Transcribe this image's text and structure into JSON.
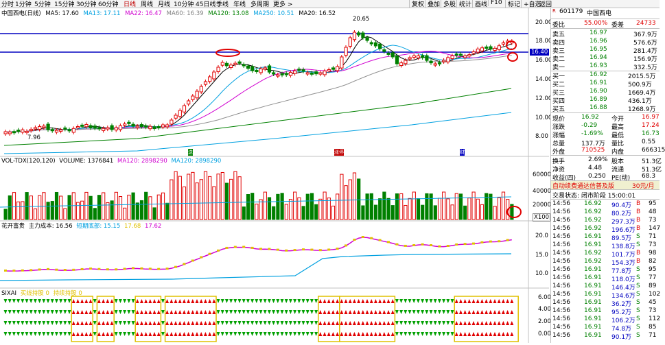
{
  "toolbar": {
    "periods": [
      "分时",
      "1分钟",
      "5分钟",
      "15分钟",
      "30分钟",
      "60分钟",
      "日线",
      "周线",
      "月线",
      "10分钟",
      "45日线",
      "季线",
      "年线",
      "多周期",
      "更多 >"
    ],
    "active_period": "日线",
    "right_tools": [
      "复权",
      "叠加",
      "多股",
      "统计",
      "画线",
      "F10",
      "标记",
      "+自选",
      "返回"
    ]
  },
  "main_chart": {
    "title": "中国西电(日线)",
    "ma": [
      {
        "label": "MA5: 17.60",
        "color": "#000000"
      },
      {
        "label": "MA13: 17.11",
        "color": "#00a0e0"
      },
      {
        "label": "MA22: 16.47",
        "color": "#d000d0"
      },
      {
        "label": "MA60: 16.39",
        "color": "#808080"
      },
      {
        "label": "MA120: 13.08",
        "color": "#008000"
      },
      {
        "label": "MA250: 10.51",
        "color": "#00a0e0"
      },
      {
        "label": "MA20: 16.52",
        "color": "#000000"
      }
    ],
    "hline_price_label": "16.40",
    "high_label": "20.65",
    "low_label": "7.96",
    "price_axis": [
      "20.00",
      "18.00",
      "16.00",
      "14.00",
      "12.00",
      "10.00",
      "8.00"
    ],
    "markers": [
      "送",
      "涨停",
      "财"
    ]
  },
  "volume_chart": {
    "title": "VOL-TDX(120,120)",
    "volume_label": "VOLUME: 1376841",
    "ma1_label": "MA120: 2898290",
    "ma2_label": "MA120: 2898290",
    "axis": [
      "60000",
      "40000",
      "20000"
    ],
    "unit": "X100"
  },
  "indicator_chart": {
    "title": "花开富贵",
    "cost_label": "主力成本: 16.56",
    "line1_label": "短期底部: 15.15",
    "line2_label": "17.68",
    "line3_label": "17.62",
    "axis": [
      "20.0",
      "15.0",
      "10.0"
    ]
  },
  "sixai_chart": {
    "title": "SIXAI",
    "sub1": "买线持股",
    "sub2": "0",
    "sub3": "持续持股",
    "sub4": "0",
    "axis": [
      "6.00",
      "4.00",
      "2.00",
      "0.00"
    ]
  },
  "quote": {
    "code": "601179",
    "name": "中国西电",
    "weibi_label": "委比",
    "weibi_value": "55.00%",
    "weicha_label": "委差",
    "weicha_value": "24733",
    "asks": [
      {
        "label": "卖五",
        "price": "16.97",
        "vol": "367.9万"
      },
      {
        "label": "卖四",
        "price": "16.96",
        "vol": "576.6万"
      },
      {
        "label": "卖三",
        "price": "16.95",
        "vol": "281.4万"
      },
      {
        "label": "卖二",
        "price": "16.94",
        "vol": "156.9万"
      },
      {
        "label": "卖一",
        "price": "16.93",
        "vol": "332.5万"
      }
    ],
    "bids": [
      {
        "label": "买一",
        "price": "16.92",
        "vol": "2015.5万"
      },
      {
        "label": "买二",
        "price": "16.91",
        "vol": "500.9万"
      },
      {
        "label": "买三",
        "price": "16.90",
        "vol": "1669.4万"
      },
      {
        "label": "买四",
        "price": "16.89",
        "vol": "436.1万"
      },
      {
        "label": "买五",
        "price": "16.88",
        "vol": "1268.9万"
      }
    ],
    "stats": [
      {
        "l1": "现价",
        "v1": "16.92",
        "l2": "今开",
        "v2": "16.97"
      },
      {
        "l1": "涨跌",
        "v1": "-0.29",
        "l2": "最高",
        "v2": "17.24"
      },
      {
        "l1": "涨幅",
        "v1": "-1.69%",
        "l2": "最低",
        "v2": "16.73"
      },
      {
        "l1": "总量",
        "v1": "137.7万",
        "l2": "量比",
        "v2": "0.55"
      },
      {
        "l1": "外盘",
        "v1": "710525",
        "l2": "内盘",
        "v2": "666315"
      }
    ],
    "stats2": [
      {
        "l1": "换手",
        "v1": "2.69%",
        "l2": "股本",
        "v2": "51.3亿"
      },
      {
        "l1": "净资",
        "v1": "4.48",
        "l2": "流通",
        "v2": "51.3亿"
      },
      {
        "l1": "收益(四)",
        "v1": "0.250",
        "l2": "PE(动)",
        "v2": "68.3"
      }
    ],
    "promo": "自动续费通达信普及版",
    "promo_price": "30元/月",
    "status": "交易状态: 闭市阶段 15:00:01",
    "ticks": [
      {
        "time": "14:56",
        "price": "16.92",
        "vol": "90.4万",
        "bs": "B",
        "n": "95"
      },
      {
        "time": "14:56",
        "price": "16.92",
        "vol": "80.2万",
        "bs": "B",
        "n": "48"
      },
      {
        "time": "14:56",
        "price": "16.92",
        "vol": "297.3万",
        "bs": "B",
        "n": "73"
      },
      {
        "time": "14:56",
        "price": "16.92",
        "vol": "196.6万",
        "bs": "B",
        "n": "147"
      },
      {
        "time": "14:56",
        "price": "16.91",
        "vol": "89.5万",
        "bs": "S",
        "n": "71"
      },
      {
        "time": "14:56",
        "price": "16.91",
        "vol": "138.8万",
        "bs": "S",
        "n": "73"
      },
      {
        "time": "14:56",
        "price": "16.92",
        "vol": "101.7万",
        "bs": "B",
        "n": "98"
      },
      {
        "time": "14:56",
        "price": "16.92",
        "vol": "154.3万",
        "bs": "B",
        "n": "82"
      },
      {
        "time": "14:56",
        "price": "16.91",
        "vol": "77.8万",
        "bs": "S",
        "n": "95"
      },
      {
        "time": "14:56",
        "price": "16.91",
        "vol": "118.0万",
        "bs": "S",
        "n": "77"
      },
      {
        "time": "14:56",
        "price": "16.91",
        "vol": "146.4万",
        "bs": "S",
        "n": "89"
      },
      {
        "time": "14:56",
        "price": "16.91",
        "vol": "134.6万",
        "bs": "S",
        "n": "102"
      },
      {
        "time": "14:56",
        "price": "16.91",
        "vol": "36.2万",
        "bs": "S",
        "n": "45"
      },
      {
        "time": "14:56",
        "price": "16.91",
        "vol": "95.2万",
        "bs": "S",
        "n": "73"
      },
      {
        "time": "14:56",
        "price": "16.91",
        "vol": "106.2万",
        "bs": "S",
        "n": "112"
      },
      {
        "time": "14:56",
        "price": "16.91",
        "vol": "74.8万",
        "bs": "S",
        "n": "85"
      },
      {
        "time": "14:56",
        "price": "16.91",
        "vol": "90.1万",
        "bs": "S",
        "n": "71"
      }
    ]
  }
}
